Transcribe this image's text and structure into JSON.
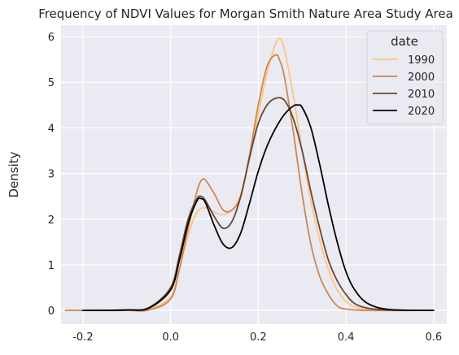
{
  "chart_data": {
    "type": "line",
    "title": "Frequency of NDVI Values for Morgan Smith Nature Area Study Area",
    "xlabel": "",
    "ylabel": "Density",
    "xlim": [
      -0.25,
      0.63
    ],
    "ylim": [
      -0.3,
      6.25
    ],
    "xticks": [
      "-0.2",
      "0.0",
      "0.2",
      "0.4",
      "0.6"
    ],
    "xtick_values": [
      -0.2,
      0.0,
      0.2,
      0.4,
      0.6
    ],
    "yticks": [
      "0",
      "1",
      "2",
      "3",
      "4",
      "5",
      "6"
    ],
    "ytick_values": [
      0,
      1,
      2,
      3,
      4,
      5,
      6
    ],
    "grid": true,
    "legend": {
      "title": "date",
      "placement": "top-right"
    },
    "series": [
      {
        "name": "1990",
        "color": "#ffc57f",
        "x": [
          -0.2,
          -0.1,
          -0.05,
          0.0,
          0.02,
          0.04,
          0.06,
          0.08,
          0.1,
          0.12,
          0.14,
          0.16,
          0.18,
          0.2,
          0.22,
          0.24,
          0.25,
          0.26,
          0.28,
          0.3,
          0.32,
          0.34,
          0.36,
          0.38,
          0.4,
          0.42,
          0.45,
          0.5,
          0.6
        ],
        "y": [
          0,
          0,
          0.02,
          0.3,
          0.9,
          1.65,
          2.15,
          2.25,
          2.15,
          2.1,
          2.2,
          2.55,
          3.3,
          4.3,
          5.2,
          5.85,
          5.95,
          5.7,
          4.7,
          3.5,
          2.4,
          1.55,
          0.9,
          0.45,
          0.2,
          0.08,
          0.02,
          0,
          0
        ]
      },
      {
        "name": "2000",
        "color": "#cd8752",
        "x": [
          -0.24,
          -0.1,
          -0.05,
          0.0,
          0.02,
          0.04,
          0.06,
          0.07,
          0.08,
          0.1,
          0.12,
          0.14,
          0.16,
          0.18,
          0.2,
          0.22,
          0.24,
          0.25,
          0.26,
          0.28,
          0.3,
          0.32,
          0.34,
          0.36,
          0.38,
          0.4,
          0.45,
          0.55
        ],
        "y": [
          0,
          0,
          0.01,
          0.25,
          0.9,
          1.8,
          2.6,
          2.85,
          2.85,
          2.55,
          2.2,
          2.2,
          2.5,
          3.4,
          4.5,
          5.35,
          5.6,
          5.45,
          5.1,
          3.9,
          2.55,
          1.45,
          0.75,
          0.35,
          0.1,
          0.03,
          0,
          0
        ]
      },
      {
        "name": "2010",
        "color": "#6a4530",
        "x": [
          -0.2,
          -0.1,
          -0.05,
          0.0,
          0.02,
          0.04,
          0.06,
          0.07,
          0.08,
          0.1,
          0.12,
          0.14,
          0.16,
          0.18,
          0.2,
          0.22,
          0.24,
          0.26,
          0.28,
          0.3,
          0.32,
          0.34,
          0.36,
          0.38,
          0.4,
          0.42,
          0.45,
          0.5,
          0.6
        ],
        "y": [
          0,
          0.01,
          0.06,
          0.5,
          1.2,
          2.0,
          2.45,
          2.5,
          2.4,
          2.05,
          1.8,
          1.95,
          2.5,
          3.35,
          4.1,
          4.5,
          4.65,
          4.6,
          4.2,
          3.5,
          2.6,
          1.8,
          1.1,
          0.65,
          0.35,
          0.15,
          0.05,
          0.01,
          0
        ]
      },
      {
        "name": "2020",
        "color": "#000000",
        "x": [
          -0.2,
          -0.1,
          -0.05,
          0.0,
          0.02,
          0.04,
          0.06,
          0.07,
          0.08,
          0.1,
          0.12,
          0.14,
          0.16,
          0.18,
          0.2,
          0.22,
          0.24,
          0.26,
          0.28,
          0.29,
          0.3,
          0.32,
          0.34,
          0.36,
          0.38,
          0.4,
          0.42,
          0.45,
          0.5,
          0.6
        ],
        "y": [
          0,
          0.01,
          0.05,
          0.45,
          1.1,
          1.9,
          2.4,
          2.45,
          2.35,
          1.85,
          1.45,
          1.38,
          1.7,
          2.35,
          3.05,
          3.6,
          4.0,
          4.3,
          4.48,
          4.5,
          4.45,
          4.0,
          3.2,
          2.3,
          1.5,
          0.85,
          0.45,
          0.15,
          0.02,
          0
        ]
      }
    ]
  }
}
